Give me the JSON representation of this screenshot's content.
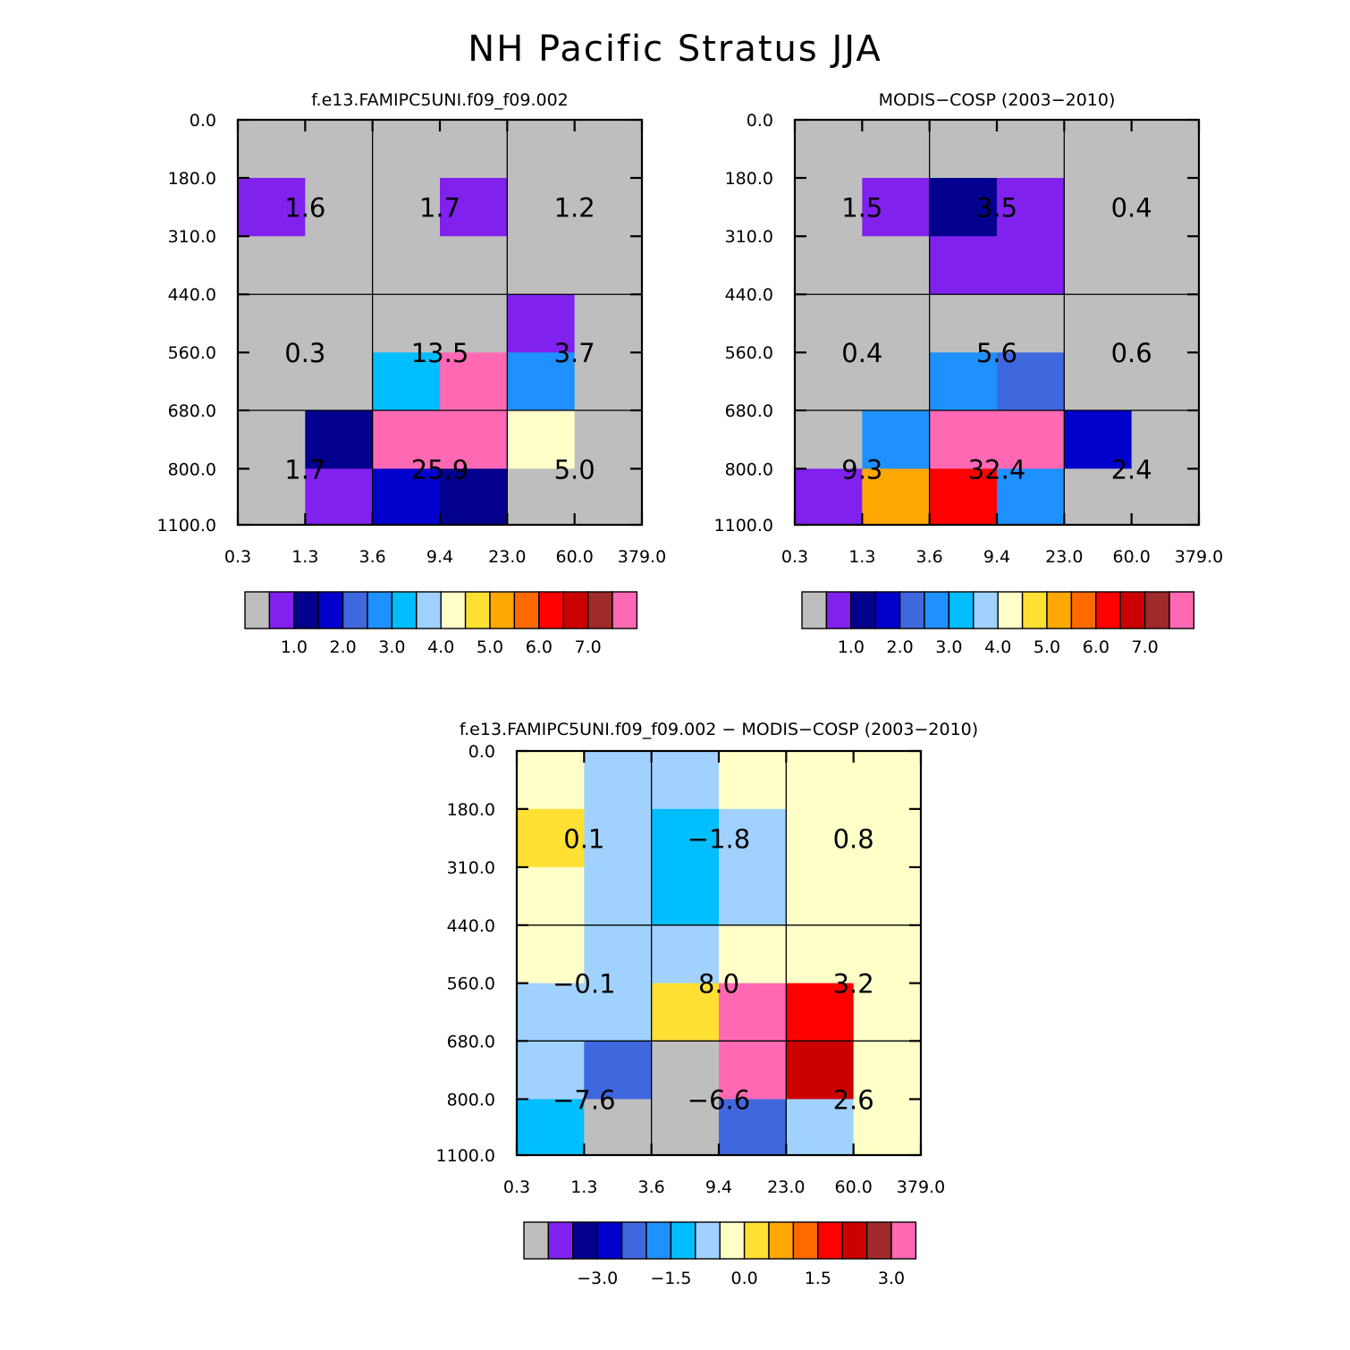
{
  "title": "NH Pacific Stratus JJA",
  "colors": {
    "palette": [
      "#bebebe",
      "#8021ee",
      "#02008c",
      "#0200cd",
      "#4068de",
      "#1e90ff",
      "#00beff",
      "#a1d2ff",
      "#ffffc8",
      "#ffe033",
      "#ffa702",
      "#ff6a00",
      "#ff0000",
      "#cd0000",
      "#a02929",
      "#ff69b4"
    ],
    "background": "#ffffff",
    "ink": "#000000"
  },
  "chart_data": [
    {
      "id": "model",
      "type": "heatmap",
      "title": "f.e13.FAMIPC5UNI.f09_f09.002",
      "xlabel": "",
      "ylabel": "",
      "x_ticks": [
        "0.3",
        "1.3",
        "3.6",
        "9.4",
        "23.0",
        "60.0",
        "379.0"
      ],
      "y_ticks": [
        "0.0",
        "180.0",
        "310.0",
        "440.0",
        "560.0",
        "680.0",
        "800.0",
        "1100.0"
      ],
      "cell_color_index": [
        [
          0,
          0,
          0,
          0,
          0,
          0
        ],
        [
          1,
          0,
          0,
          1,
          0,
          0
        ],
        [
          0,
          0,
          0,
          0,
          0,
          0
        ],
        [
          0,
          0,
          0,
          0,
          1,
          0
        ],
        [
          0,
          0,
          6,
          15,
          5,
          0
        ],
        [
          0,
          2,
          15,
          15,
          8,
          0
        ],
        [
          0,
          1,
          3,
          2,
          0,
          0
        ]
      ],
      "block_labels": [
        [
          "1.6",
          "1.7",
          "1.2"
        ],
        [
          "0.3",
          "13.5",
          "3.7"
        ],
        [
          "1.7",
          "25.9",
          "5.0"
        ]
      ],
      "colorbar_labels": [
        "1.0",
        "2.0",
        "3.0",
        "4.0",
        "5.0",
        "6.0",
        "7.0"
      ]
    },
    {
      "id": "obs",
      "type": "heatmap",
      "title": "MODIS-COSP (2003-2010)",
      "xlabel": "",
      "ylabel": "",
      "x_ticks": [
        "0.3",
        "1.3",
        "3.6",
        "9.4",
        "23.0",
        "60.0",
        "379.0"
      ],
      "y_ticks": [
        "0.0",
        "180.0",
        "310.0",
        "440.0",
        "560.0",
        "680.0",
        "800.0",
        "1100.0"
      ],
      "cell_color_index": [
        [
          0,
          0,
          0,
          0,
          0,
          0
        ],
        [
          0,
          1,
          2,
          1,
          0,
          0
        ],
        [
          0,
          0,
          1,
          1,
          0,
          0
        ],
        [
          0,
          0,
          0,
          0,
          0,
          0
        ],
        [
          0,
          0,
          5,
          4,
          0,
          0
        ],
        [
          0,
          5,
          15,
          15,
          3,
          0
        ],
        [
          1,
          10,
          12,
          5,
          0,
          0
        ]
      ],
      "block_labels": [
        [
          "1.5",
          "3.5",
          "0.4"
        ],
        [
          "0.4",
          "5.6",
          "0.6"
        ],
        [
          "9.3",
          "32.4",
          "2.4"
        ]
      ],
      "colorbar_labels": [
        "1.0",
        "2.0",
        "3.0",
        "4.0",
        "5.0",
        "6.0",
        "7.0"
      ]
    },
    {
      "id": "diff",
      "type": "heatmap",
      "title": "f.e13.FAMIPC5UNI.f09_f09.002 - MODIS-COSP (2003-2010)",
      "xlabel": "",
      "ylabel": "",
      "x_ticks": [
        "0.3",
        "1.3",
        "3.6",
        "9.4",
        "23.0",
        "60.0",
        "379.0"
      ],
      "y_ticks": [
        "0.0",
        "180.0",
        "310.0",
        "440.0",
        "560.0",
        "680.0",
        "800.0",
        "1100.0"
      ],
      "cell_color_index": [
        [
          8,
          7,
          7,
          8,
          8,
          8
        ],
        [
          9,
          7,
          6,
          7,
          8,
          8
        ],
        [
          8,
          7,
          6,
          7,
          8,
          8
        ],
        [
          8,
          7,
          7,
          8,
          8,
          8
        ],
        [
          7,
          7,
          9,
          15,
          12,
          8
        ],
        [
          7,
          4,
          0,
          15,
          13,
          8
        ],
        [
          6,
          0,
          0,
          4,
          7,
          8
        ]
      ],
      "block_labels": [
        [
          "0.1",
          "-1.8",
          "0.8"
        ],
        [
          "-0.1",
          "8.0",
          "3.2"
        ],
        [
          "-7.6",
          "-6.6",
          "2.6"
        ]
      ],
      "colorbar_labels": [
        "-3.0",
        "-1.5",
        "0.0",
        "1.5",
        "3.0"
      ]
    }
  ]
}
